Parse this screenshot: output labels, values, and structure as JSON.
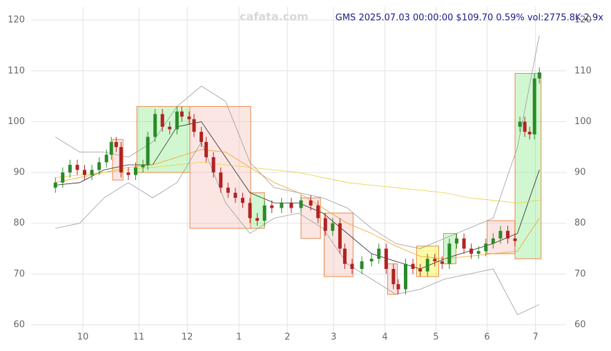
{
  "chart_data": {
    "type": "candlestick",
    "title": "GMS 2025.07.03 00:00:00 $109.70 0.59% vol:2775.8K 2.9x",
    "watermark": "cafata.com",
    "up_color": "#2a8a2a",
    "down_color": "#b22222",
    "xlim": [
      0,
      220
    ],
    "xticks": [
      {
        "value": 21.3,
        "label": "10"
      },
      {
        "value": 44.3,
        "label": "11"
      },
      {
        "value": 64.2,
        "label": "12"
      },
      {
        "value": 85.5,
        "label": "1"
      },
      {
        "value": 105.4,
        "label": "2"
      },
      {
        "value": 124.4,
        "label": "3"
      },
      {
        "value": 145.5,
        "label": "4"
      },
      {
        "value": 166.5,
        "label": "5"
      },
      {
        "value": 187.5,
        "label": "6"
      },
      {
        "value": 207.4,
        "label": "7"
      }
    ],
    "ylim": [
      58.1,
      122.6
    ],
    "yticks": [
      60,
      70,
      80,
      90,
      100,
      110,
      120
    ],
    "grid": true,
    "x": [
      10,
      13,
      16,
      19,
      22,
      25,
      28,
      31,
      33,
      35,
      37,
      40,
      43,
      46,
      48,
      51,
      54,
      57,
      60,
      62,
      65,
      67,
      70,
      72,
      75,
      78,
      81,
      84,
      87,
      90,
      93,
      96,
      99,
      103,
      107,
      111,
      115,
      118,
      121,
      124,
      127,
      129,
      132,
      136,
      140,
      143,
      146,
      149,
      151,
      154,
      157,
      160,
      163,
      166,
      169,
      172,
      175,
      178,
      181,
      184,
      187,
      190,
      193,
      196,
      199,
      201,
      203,
      205,
      207,
      209
    ],
    "open": [
      87,
      88,
      90,
      91.5,
      90.5,
      89.5,
      90.5,
      92,
      93.5,
      96,
      95,
      90,
      89.5,
      91,
      91.5,
      97,
      101.5,
      99,
      98.5,
      102,
      101,
      100.5,
      98,
      96,
      93,
      90,
      87,
      86,
      85,
      84,
      81,
      80.5,
      83.5,
      83,
      84,
      83,
      84.5,
      83.5,
      81,
      78.5,
      80,
      75,
      72,
      71,
      72.5,
      73,
      75,
      71,
      68,
      67,
      72,
      71,
      70.5,
      73,
      72.5,
      72,
      76,
      77,
      75,
      74,
      74.5,
      76,
      77,
      78.5,
      77,
      99,
      100,
      98,
      97.5,
      108.5
    ],
    "high": [
      89,
      91,
      92.5,
      92.5,
      91.5,
      91.5,
      93,
      94.5,
      97,
      97,
      96,
      91,
      92,
      92.5,
      98,
      102.5,
      102.5,
      100,
      103,
      103,
      102,
      101.5,
      99,
      97,
      94,
      91,
      88,
      87,
      86,
      85,
      82,
      84.5,
      84.5,
      85,
      85,
      85.5,
      85.5,
      84.5,
      82,
      81,
      81,
      76,
      73,
      73.5,
      74,
      76,
      76,
      72,
      69,
      73,
      73,
      72,
      74,
      74,
      73.5,
      77,
      78,
      78,
      76,
      75.5,
      77,
      78,
      79.5,
      79.5,
      78,
      101,
      101,
      99,
      109.5,
      110.7
    ],
    "low": [
      86,
      87,
      89,
      89.5,
      88.5,
      88.5,
      89.5,
      91,
      92.5,
      94,
      89,
      88.5,
      88.5,
      90,
      90.5,
      96,
      98,
      97.5,
      97.5,
      100,
      99.5,
      97,
      95,
      92,
      89,
      86,
      85,
      84,
      83,
      80,
      79.5,
      79.5,
      82,
      82,
      82,
      82,
      82.5,
      80,
      77.5,
      77.5,
      74,
      71,
      70,
      70,
      71.5,
      72,
      70,
      67,
      66,
      66,
      70,
      69.5,
      69.5,
      71.5,
      71,
      71,
      75,
      74,
      73,
      73,
      73.5,
      75,
      76,
      76,
      75.5,
      98,
      97,
      96.5,
      96.5,
      107.5
    ],
    "close": [
      88,
      90,
      91.5,
      90.5,
      89.5,
      90.5,
      92,
      93.5,
      96,
      95,
      90,
      89.5,
      91,
      91.5,
      97,
      101.5,
      99,
      98.5,
      102,
      101,
      100.5,
      98,
      96,
      93,
      90,
      87,
      86,
      85,
      84,
      81,
      80.5,
      83.5,
      83,
      84,
      83,
      84.5,
      83.5,
      81,
      78.5,
      80,
      75,
      72,
      71,
      72.5,
      73,
      75,
      71,
      68,
      67,
      72,
      71,
      70.5,
      73,
      72.5,
      72,
      76,
      77,
      75,
      74,
      74.5,
      76,
      77,
      78.5,
      77,
      76.5,
      100,
      98,
      97.5,
      108.5,
      109.7
    ],
    "lines_x": [
      10,
      20,
      30,
      40,
      50,
      60,
      70,
      80,
      90,
      100,
      110,
      120,
      130,
      140,
      150,
      160,
      170,
      180,
      190,
      200,
      209
    ],
    "lines": [
      {
        "color": "#222222",
        "values": [
          87.5,
          88,
          90.5,
          91.5,
          91.5,
          99,
          100,
          93,
          86,
          84,
          84,
          82,
          78,
          74,
          72.5,
          71,
          73,
          74.5,
          76,
          78,
          90.5
        ]
      },
      {
        "color": "#f0a020",
        "values": [
          88,
          89,
          90,
          91,
          91.5,
          93,
          94.5,
          94,
          91,
          88,
          86,
          83,
          80,
          78,
          75.5,
          73.5,
          73,
          73.5,
          74,
          74.5,
          81
        ]
      },
      {
        "color": "#e8d040",
        "values": [
          89,
          89.5,
          90,
          90.5,
          91,
          91.5,
          92,
          91.5,
          91,
          90.5,
          90,
          89,
          88,
          87.5,
          87,
          86.5,
          86,
          85,
          84.5,
          84,
          84.5
        ]
      },
      {
        "color": "#999999",
        "values": [
          97,
          94,
          94,
          93,
          96,
          103,
          107,
          104,
          92,
          87,
          86,
          85,
          83,
          79,
          76,
          75,
          77,
          79,
          81,
          95,
          117
        ]
      },
      {
        "color": "#999999",
        "values": [
          79,
          80,
          85,
          88,
          85,
          88,
          96,
          84,
          78,
          81,
          82,
          79,
          72,
          69,
          66,
          67,
          69,
          70,
          71,
          62,
          64
        ]
      }
    ],
    "boxes": [
      {
        "x": [
          43.5,
          65.3
        ],
        "y": [
          90,
          103
        ],
        "color": "#7be87b"
      },
      {
        "x": [
          65.3,
          90.3
        ],
        "y": [
          79,
          103
        ],
        "color": "#f4b8b0"
      },
      {
        "x": [
          90.3,
          96
        ],
        "y": [
          79,
          86
        ],
        "color": "#7be87b"
      },
      {
        "x": [
          33.5,
          37.8
        ],
        "y": [
          88.5,
          96.5
        ],
        "color": "#f4b8b0"
      },
      {
        "x": [
          111,
          119
        ],
        "y": [
          77,
          85
        ],
        "color": "#f4b8b0"
      },
      {
        "x": [
          120.5,
          132.4
        ],
        "y": [
          69.5,
          82
        ],
        "color": "#f4b8b0"
      },
      {
        "x": [
          146.6,
          150.6
        ],
        "y": [
          66,
          72
        ],
        "color": "#f4b8b0"
      },
      {
        "x": [
          158.5,
          167.6
        ],
        "y": [
          69.5,
          75.5
        ],
        "color": "#f5f000"
      },
      {
        "x": [
          169.6,
          174.7
        ],
        "y": [
          72,
          78
        ],
        "color": "#7be87b"
      },
      {
        "x": [
          187.5,
          198.9
        ],
        "y": [
          74,
          80.5
        ],
        "color": "#f4b8b0"
      },
      {
        "x": [
          199,
          209.7
        ],
        "y": [
          73,
          109.5
        ],
        "color": "#7be87b"
      }
    ]
  }
}
